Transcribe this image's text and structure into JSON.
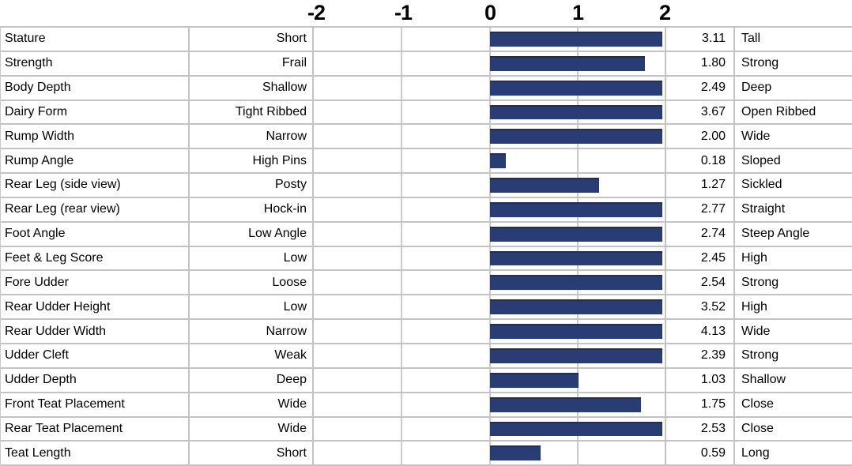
{
  "chart_data": {
    "type": "bar",
    "orientation": "horizontal",
    "title": "",
    "xlabel": "",
    "ylabel": "",
    "axis_ticks": [
      "-2",
      "-1",
      "0",
      "1",
      "2"
    ],
    "xlim": [
      -2,
      2
    ],
    "bar_cap": 2,
    "bar_color": "#2A3C74",
    "gridline_color": "#C3C3C3",
    "grid": "on",
    "categories": [
      "Stature",
      "Strength",
      "Body Depth",
      "Dairy Form",
      "Rump Width",
      "Rump Angle",
      "Rear Leg (side view)",
      "Rear Leg (rear view)",
      "Foot Angle",
      "Feet & Leg Score",
      "Fore Udder",
      "Rear Udder Height",
      "Rear Udder Width",
      "Udder Cleft",
      "Udder Depth",
      "Front Teat Placement",
      "Rear Teat Placement",
      "Teat Length"
    ],
    "values": [
      3.11,
      1.8,
      2.49,
      3.67,
      2.0,
      0.18,
      1.27,
      2.77,
      2.74,
      2.45,
      2.54,
      3.52,
      4.13,
      2.39,
      1.03,
      1.75,
      2.53,
      0.59
    ],
    "rows": [
      {
        "trait": "Stature",
        "low": "Short",
        "value": "3.11",
        "high": "Tall"
      },
      {
        "trait": "Strength",
        "low": "Frail",
        "value": "1.80",
        "high": "Strong"
      },
      {
        "trait": "Body Depth",
        "low": "Shallow",
        "value": "2.49",
        "high": "Deep"
      },
      {
        "trait": "Dairy Form",
        "low": "Tight Ribbed",
        "value": "3.67",
        "high": "Open Ribbed"
      },
      {
        "trait": "Rump Width",
        "low": "Narrow",
        "value": "2.00",
        "high": "Wide"
      },
      {
        "trait": "Rump Angle",
        "low": "High Pins",
        "value": "0.18",
        "high": "Sloped"
      },
      {
        "trait": "Rear Leg (side view)",
        "low": "Posty",
        "value": "1.27",
        "high": "Sickled"
      },
      {
        "trait": "Rear Leg (rear view)",
        "low": "Hock-in",
        "value": "2.77",
        "high": "Straight"
      },
      {
        "trait": "Foot Angle",
        "low": "Low Angle",
        "value": "2.74",
        "high": "Steep Angle"
      },
      {
        "trait": "Feet & Leg Score",
        "low": "Low",
        "value": "2.45",
        "high": "High"
      },
      {
        "trait": "Fore Udder",
        "low": "Loose",
        "value": "2.54",
        "high": "Strong"
      },
      {
        "trait": "Rear Udder Height",
        "low": "Low",
        "value": "3.52",
        "high": "High"
      },
      {
        "trait": "Rear Udder Width",
        "low": "Narrow",
        "value": "4.13",
        "high": "Wide"
      },
      {
        "trait": "Udder Cleft",
        "low": "Weak",
        "value": "2.39",
        "high": "Strong"
      },
      {
        "trait": "Udder Depth",
        "low": "Deep",
        "value": "1.03",
        "high": "Shallow"
      },
      {
        "trait": "Front Teat Placement",
        "low": "Wide",
        "value": "1.75",
        "high": "Close"
      },
      {
        "trait": "Rear Teat Placement",
        "low": "Wide",
        "value": "2.53",
        "high": "Close"
      },
      {
        "trait": "Teat Length",
        "low": "Short",
        "value": "0.59",
        "high": "Long"
      }
    ]
  }
}
